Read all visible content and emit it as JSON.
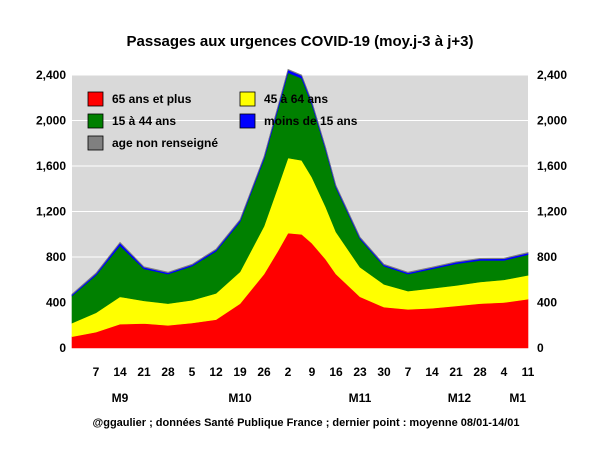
{
  "chart_data": {
    "type": "area",
    "title": "Passages aux urgences COVID-19 (moy.j-3 à j+3)",
    "subtitle": "",
    "footer": "@ggaulier ; données Santé Publique France ; dernier point : moyenne 08/01-14/01",
    "stacked": true,
    "ylim": [
      0,
      2400
    ],
    "yticks": [
      0,
      400,
      800,
      1200,
      1600,
      2000,
      2400
    ],
    "ytick_labels": [
      "0",
      "400",
      "800",
      "1,200",
      "1,600",
      "2,000",
      "2,400"
    ],
    "xlim": [
      0,
      133
    ],
    "xticks": [
      {
        "day": 7,
        "label": "7"
      },
      {
        "day": 14,
        "label": "14"
      },
      {
        "day": 21,
        "label": "21"
      },
      {
        "day": 28,
        "label": "28"
      },
      {
        "day": 35,
        "label": "5"
      },
      {
        "day": 42,
        "label": "12"
      },
      {
        "day": 49,
        "label": "19"
      },
      {
        "day": 56,
        "label": "26"
      },
      {
        "day": 63,
        "label": "2"
      },
      {
        "day": 70,
        "label": "9"
      },
      {
        "day": 77,
        "label": "16"
      },
      {
        "day": 84,
        "label": "23"
      },
      {
        "day": 91,
        "label": "30"
      },
      {
        "day": 98,
        "label": "7"
      },
      {
        "day": 105,
        "label": "14"
      },
      {
        "day": 112,
        "label": "21"
      },
      {
        "day": 119,
        "label": "28"
      },
      {
        "day": 126,
        "label": "4"
      },
      {
        "day": 133,
        "label": "11"
      }
    ],
    "months": [
      {
        "label": "M9",
        "day": 14
      },
      {
        "label": "M10",
        "day": 49
      },
      {
        "label": "M11",
        "day": 84
      },
      {
        "label": "M12",
        "day": 113
      },
      {
        "label": "M1",
        "day": 130
      }
    ],
    "grid": true,
    "legend_position": "top-left",
    "legend": [
      {
        "label": "65 ans et plus",
        "color": "#ff0000"
      },
      {
        "label": "45 à 64 ans",
        "color": "#ffff00"
      },
      {
        "label": "15 à 44 ans",
        "color": "#008000"
      },
      {
        "label": "moins de 15 ans",
        "color": "#0000ff"
      },
      {
        "label": "age non renseigné",
        "color": "#808080"
      }
    ],
    "x": [
      0,
      7,
      14,
      21,
      28,
      35,
      42,
      49,
      56,
      60,
      63,
      67,
      70,
      74,
      77,
      84,
      91,
      98,
      105,
      112,
      119,
      126,
      133
    ],
    "series": [
      {
        "name": "65 ans et plus",
        "color": "#ff0000",
        "values": [
          100,
          140,
          210,
          215,
          200,
          220,
          250,
          390,
          650,
          850,
          1010,
          1000,
          920,
          780,
          650,
          450,
          360,
          340,
          350,
          370,
          390,
          400,
          430
        ]
      },
      {
        "name": "45 à 64 ans",
        "color": "#ffff00",
        "values": [
          120,
          170,
          240,
          200,
          190,
          200,
          230,
          280,
          420,
          560,
          660,
          650,
          580,
          460,
          370,
          260,
          200,
          160,
          175,
          180,
          190,
          200,
          210
        ]
      },
      {
        "name": "15 à 44 ans",
        "color": "#008000",
        "values": [
          240,
          330,
          450,
          280,
          260,
          300,
          370,
          440,
          590,
          680,
          750,
          720,
          640,
          500,
          390,
          250,
          160,
          150,
          170,
          190,
          190,
          170,
          180
        ]
      },
      {
        "name": "moins de 15 ans",
        "color": "#0000ff",
        "values": [
          10,
          15,
          25,
          15,
          12,
          12,
          15,
          15,
          20,
          25,
          25,
          25,
          20,
          18,
          15,
          12,
          12,
          12,
          12,
          14,
          14,
          15,
          15
        ]
      },
      {
        "name": "age non renseigné",
        "color": "#808080",
        "values": [
          5,
          5,
          5,
          5,
          5,
          5,
          5,
          5,
          5,
          5,
          5,
          5,
          5,
          5,
          5,
          5,
          5,
          5,
          5,
          5,
          5,
          5,
          5
        ]
      }
    ]
  }
}
